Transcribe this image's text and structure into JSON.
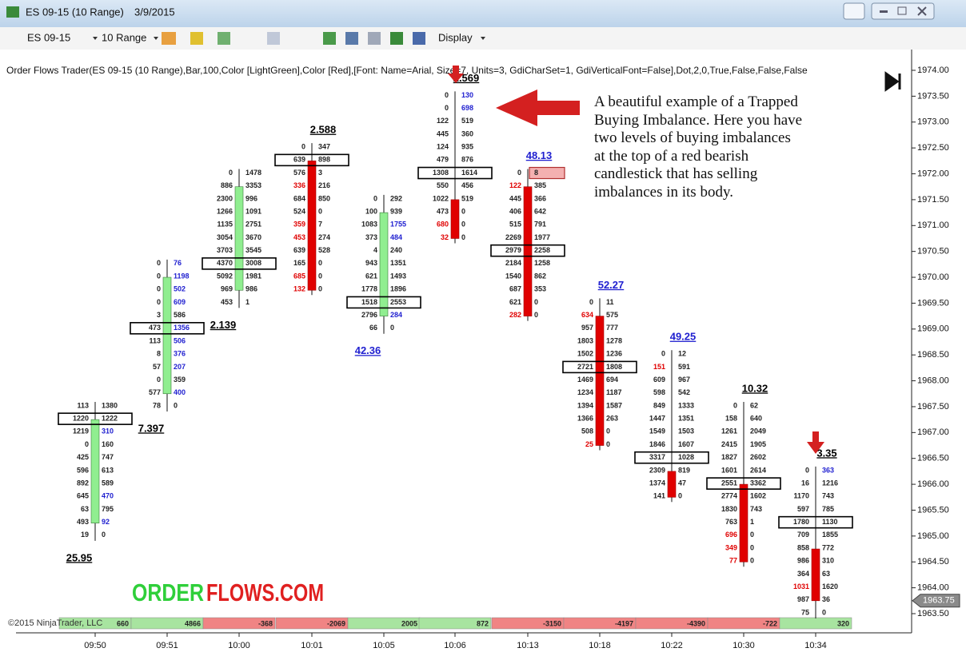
{
  "window": {
    "title": "ES 09-15 (10 Range)",
    "date": "3/9/2015"
  },
  "toolbar": {
    "instrument": "ES 09-15",
    "period": "10 Range",
    "display": "Display"
  },
  "indicator": "Order Flows Trader(ES 09-15 (10 Range),Bar,100,Color [LightGreen],Color [Red],[Font: Name=Arial, Size=7, Units=3, GdiCharSet=1, GdiVerticalFont=False],Dot,2,0,True,False,False,False",
  "annotation": [
    "A beautiful example of a Trapped",
    "Buying Imbalance. Here you have",
    "two levels of buying imbalances",
    "at the top of a red bearish",
    "candlestick that has selling",
    "imbalances in its body."
  ],
  "logo": {
    "part1": "ORDER",
    "part2": "FLOWS.COM"
  },
  "copyright": "©2015 NinjaTrader, LLC",
  "price_axis": {
    "lim": [
      1963.5,
      1974
    ],
    "ticks": [
      {
        "value": 1974,
        "label": "1974.00"
      },
      {
        "value": 1973.5,
        "label": "1973.50"
      },
      {
        "value": 1973,
        "label": "1973.00"
      },
      {
        "value": 1972.5,
        "label": "1972.50"
      },
      {
        "value": 1972,
        "label": "1972.00"
      },
      {
        "value": 1971.5,
        "label": "1971.50"
      },
      {
        "value": 1971,
        "label": "1971.00"
      },
      {
        "value": 1970.5,
        "label": "1970.50"
      },
      {
        "value": 1970,
        "label": "1970.00"
      },
      {
        "value": 1969.5,
        "label": "1969.50"
      },
      {
        "value": 1969,
        "label": "1969.00"
      },
      {
        "value": 1968.5,
        "label": "1968.50"
      },
      {
        "value": 1968,
        "label": "1968.00"
      },
      {
        "value": 1967.5,
        "label": "1967.50"
      },
      {
        "value": 1967,
        "label": "1967.00"
      },
      {
        "value": 1966.5,
        "label": "1966.50"
      },
      {
        "value": 1966,
        "label": "1966.00"
      },
      {
        "value": 1965.5,
        "label": "1965.50"
      },
      {
        "value": 1965,
        "label": "1965.00"
      },
      {
        "value": 1964.5,
        "label": "1964.50"
      },
      {
        "value": 1964,
        "label": "1964.00"
      },
      {
        "value": 1963.5,
        "label": "1963.50"
      }
    ],
    "last_price": {
      "value": 1963.75,
      "label": "1963.75"
    }
  },
  "bars": [
    {
      "time": "09:50",
      "high": 1967.5,
      "low": 1965,
      "open": 1965.25,
      "close": 1967.25,
      "color": "#90ee90",
      "label": "25.95",
      "label_color": "#000000",
      "delta": 660,
      "rows": [
        {
          "bid": 113,
          "ask": 1380
        },
        {
          "bid": 1220,
          "ask": 1222,
          "boxed": true
        },
        {
          "bid": 1219,
          "ask": 310,
          "ask_color": "#2020d0"
        },
        {
          "bid": 0,
          "ask": 160
        },
        {
          "bid": 425,
          "ask": 747
        },
        {
          "bid": 596,
          "ask": 613
        },
        {
          "bid": 892,
          "ask": 589
        },
        {
          "bid": 645,
          "ask": 470,
          "ask_color": "#2020d0"
        },
        {
          "bid": 63,
          "ask": 795
        },
        {
          "bid": 493,
          "ask": 92,
          "ask_color": "#2020d0"
        },
        {
          "bid": 19,
          "ask": 0
        }
      ]
    },
    {
      "time": "09:51",
      "high": 1970.25,
      "low": 1967.5,
      "open": 1967.75,
      "close": 1970,
      "color": "#90ee90",
      "label": "7.397",
      "label_color": "#000000",
      "delta": 4866,
      "rows": [
        {
          "bid": 0,
          "ask": 76,
          "ask_color": "#2020d0"
        },
        {
          "bid": 0,
          "ask": 1198,
          "ask_color": "#2020d0"
        },
        {
          "bid": 0,
          "ask": 502,
          "ask_color": "#2020d0"
        },
        {
          "bid": 0,
          "ask": 609,
          "ask_color": "#2020d0"
        },
        {
          "bid": 3,
          "ask": 586
        },
        {
          "bid": 473,
          "ask": 1356,
          "ask_color": "#2020d0",
          "boxed": true
        },
        {
          "bid": 113,
          "ask": 506,
          "ask_color": "#2020d0"
        },
        {
          "bid": 8,
          "ask": 376,
          "ask_color": "#2020d0"
        },
        {
          "bid": 57,
          "ask": 207,
          "ask_color": "#2020d0"
        },
        {
          "bid": 0,
          "ask": 359
        },
        {
          "bid": 577,
          "ask": 400,
          "ask_color": "#2020d0"
        },
        {
          "bid": 78,
          "ask": 0
        }
      ]
    },
    {
      "time": "10:00",
      "high": 1972,
      "low": 1969.5,
      "open": 1969.75,
      "close": 1971.75,
      "color": "#90ee90",
      "label": "2.139",
      "label_color": "#000000",
      "delta": -368,
      "rows": [
        {
          "bid": 0,
          "ask": 1478
        },
        {
          "bid": 886,
          "ask": 3353
        },
        {
          "bid": 2300,
          "ask": 996
        },
        {
          "bid": 1266,
          "ask": 1091
        },
        {
          "bid": 1135,
          "ask": 2751
        },
        {
          "bid": 3054,
          "ask": 3670
        },
        {
          "bid": 3703,
          "ask": 3545
        },
        {
          "bid": 4370,
          "ask": 3008,
          "boxed": true
        },
        {
          "bid": 5092,
          "ask": 1981
        },
        {
          "bid": 969,
          "ask": 986
        },
        {
          "bid": 453,
          "ask": 1
        }
      ]
    },
    {
      "time": "10:01",
      "high": 1972.5,
      "low": 1969.75,
      "open": 1972.25,
      "close": 1969.75,
      "color": "#e00000",
      "label": "2.588",
      "label_color": "#000000",
      "delta": -2069,
      "rows": [
        {
          "bid": 0,
          "ask": 347
        },
        {
          "bid": 639,
          "ask": 898,
          "boxed": true
        },
        {
          "bid": 576,
          "ask": 3
        },
        {
          "bid": 336,
          "ask": 216,
          "bid_color": "#e00000"
        },
        {
          "bid": 684,
          "ask": 850
        },
        {
          "bid": 524,
          "ask": 0
        },
        {
          "bid": 359,
          "ask": 7,
          "bid_color": "#e00000"
        },
        {
          "bid": 453,
          "ask": 274,
          "bid_color": "#e00000"
        },
        {
          "bid": 639,
          "ask": 528
        },
        {
          "bid": 165,
          "ask": 0
        },
        {
          "bid": 685,
          "ask": 0,
          "bid_color": "#e00000"
        },
        {
          "bid": 132,
          "ask": 0,
          "bid_color": "#e00000"
        }
      ]
    },
    {
      "time": "10:05",
      "high": 1971.5,
      "low": 1969,
      "open": 1969.25,
      "close": 1971.25,
      "color": "#90ee90",
      "label": "42.36",
      "label_color": "#2020d0",
      "delta": 2005,
      "rows": [
        {
          "bid": 0,
          "ask": 292
        },
        {
          "bid": 100,
          "ask": 939
        },
        {
          "bid": 1083,
          "ask": 1755,
          "ask_color": "#2020d0"
        },
        {
          "bid": 373,
          "ask": 484,
          "ask_color": "#2020d0"
        },
        {
          "bid": 4,
          "ask": 240
        },
        {
          "bid": 943,
          "ask": 1351
        },
        {
          "bid": 621,
          "ask": 1493
        },
        {
          "bid": 1778,
          "ask": 1896
        },
        {
          "bid": 1518,
          "ask": 2553,
          "boxed": true
        },
        {
          "bid": 2796,
          "ask": 284,
          "ask_color": "#2020d0"
        },
        {
          "bid": 66,
          "ask": 0
        }
      ]
    },
    {
      "time": "10:06",
      "high": 1973.5,
      "low": 1970.75,
      "open": 1971.5,
      "close": 1970.75,
      "color": "#e00000",
      "label": "2.569",
      "label_color": "#000000",
      "delta": 872,
      "rows": [
        {
          "bid": 0,
          "ask": 130,
          "ask_color": "#2020d0"
        },
        {
          "bid": 0,
          "ask": 698,
          "ask_color": "#2020d0"
        },
        {
          "bid": 122,
          "ask": 519
        },
        {
          "bid": 445,
          "ask": 360
        },
        {
          "bid": 124,
          "ask": 935
        },
        {
          "bid": 479,
          "ask": 876
        },
        {
          "bid": 1308,
          "ask": 1614,
          "boxed": true
        },
        {
          "bid": 550,
          "ask": 456
        },
        {
          "bid": 1022,
          "ask": 519
        },
        {
          "bid": 473,
          "ask": 0
        },
        {
          "bid": 680,
          "ask": 0,
          "bid_color": "#e00000"
        },
        {
          "bid": 32,
          "ask": 0,
          "bid_color": "#e00000"
        }
      ]
    },
    {
      "time": "10:13",
      "high": 1972,
      "low": 1969.25,
      "open": 1971.75,
      "close": 1969.25,
      "color": "#e00000",
      "label": "48.13",
      "label_color": "#2020d0",
      "delta": -3150,
      "rows": [
        {
          "bid": 0,
          "ask": 8,
          "ask_fill": "#f4b0b0"
        },
        {
          "bid": 122,
          "ask": 385,
          "bid_color": "#e00000"
        },
        {
          "bid": 445,
          "ask": 366
        },
        {
          "bid": 406,
          "ask": 642
        },
        {
          "bid": 515,
          "ask": 791
        },
        {
          "bid": 2269,
          "ask": 1977
        },
        {
          "bid": 2979,
          "ask": 2258,
          "boxed": true
        },
        {
          "bid": 2184,
          "ask": 1258
        },
        {
          "bid": 1540,
          "ask": 862
        },
        {
          "bid": 687,
          "ask": 353
        },
        {
          "bid": 621,
          "ask": 0
        },
        {
          "bid": 282,
          "ask": 0,
          "bid_color": "#e00000"
        }
      ]
    },
    {
      "time": "10:18",
      "high": 1969.5,
      "low": 1966.75,
      "open": 1969.25,
      "close": 1966.75,
      "color": "#e00000",
      "label": "52.27",
      "label_color": "#2020d0",
      "delta": -4197,
      "rows": [
        {
          "bid": 0,
          "ask": 11
        },
        {
          "bid": 634,
          "ask": 575,
          "bid_color": "#e00000"
        },
        {
          "bid": 957,
          "ask": 777
        },
        {
          "bid": 1803,
          "ask": 1278
        },
        {
          "bid": 1502,
          "ask": 1236
        },
        {
          "bid": 2721,
          "ask": 1808,
          "boxed": true
        },
        {
          "bid": 1469,
          "ask": 694
        },
        {
          "bid": 1234,
          "ask": 1187
        },
        {
          "bid": 1394,
          "ask": 1587
        },
        {
          "bid": 1366,
          "ask": 263
        },
        {
          "bid": 508,
          "ask": 0
        },
        {
          "bid": 25,
          "ask": 0,
          "bid_color": "#e00000"
        }
      ]
    },
    {
      "time": "10:22",
      "high": 1968.5,
      "low": 1965.75,
      "open": 1966.25,
      "close": 1965.75,
      "color": "#e00000",
      "label": "49.25",
      "label_color": "#2020d0",
      "delta": -4390,
      "rows": [
        {
          "bid": 0,
          "ask": 12
        },
        {
          "bid": 151,
          "ask": 591,
          "bid_color": "#e00000"
        },
        {
          "bid": 609,
          "ask": 967
        },
        {
          "bid": 598,
          "ask": 542
        },
        {
          "bid": 849,
          "ask": 1333
        },
        {
          "bid": 1447,
          "ask": 1351
        },
        {
          "bid": 1549,
          "ask": 1503
        },
        {
          "bid": 1846,
          "ask": 1607
        },
        {
          "bid": 3317,
          "ask": 1028,
          "boxed": true
        },
        {
          "bid": 2309,
          "ask": 819
        },
        {
          "bid": 1374,
          "ask": 47
        },
        {
          "bid": 141,
          "ask": 0
        }
      ]
    },
    {
      "time": "10:30",
      "high": 1967.5,
      "low": 1964.5,
      "open": 1966,
      "close": 1964.5,
      "color": "#e00000",
      "label": "10.32",
      "label_color": "#000000",
      "delta": -722,
      "rows": [
        {
          "bid": 0,
          "ask": 62
        },
        {
          "bid": 158,
          "ask": 640
        },
        {
          "bid": 1261,
          "ask": 2049
        },
        {
          "bid": 2415,
          "ask": 1905
        },
        {
          "bid": 1827,
          "ask": 2602
        },
        {
          "bid": 1601,
          "ask": 2614
        },
        {
          "bid": 2551,
          "ask": 3362,
          "boxed": true
        },
        {
          "bid": 2774,
          "ask": 1602
        },
        {
          "bid": 1830,
          "ask": 743
        },
        {
          "bid": 763,
          "ask": 1
        },
        {
          "bid": 696,
          "ask": 0,
          "bid_color": "#e00000"
        },
        {
          "bid": 349,
          "ask": 0,
          "bid_color": "#e00000"
        },
        {
          "bid": 77,
          "ask": 0,
          "bid_color": "#e00000"
        }
      ]
    },
    {
      "time": "10:34",
      "high": 1966.25,
      "low": 1963.5,
      "open": 1964.75,
      "close": 1963.75,
      "color": "#e00000",
      "label": "3.35",
      "label_color": "#000000",
      "delta": 320,
      "rows": [
        {
          "bid": 0,
          "ask": 363,
          "ask_color": "#2020d0"
        },
        {
          "bid": 16,
          "ask": 1216
        },
        {
          "bid": 1170,
          "ask": 743
        },
        {
          "bid": 597,
          "ask": 785
        },
        {
          "bid": 1780,
          "ask": 1130,
          "boxed": true
        },
        {
          "bid": 709,
          "ask": 1855
        },
        {
          "bid": 858,
          "ask": 772
        },
        {
          "bid": 986,
          "ask": 310
        },
        {
          "bid": 364,
          "ask": 63
        },
        {
          "bid": 1031,
          "ask": 1620,
          "bid_color": "#e00000"
        },
        {
          "bid": 987,
          "ask": 36
        },
        {
          "bid": 75,
          "ask": 0
        }
      ]
    }
  ]
}
